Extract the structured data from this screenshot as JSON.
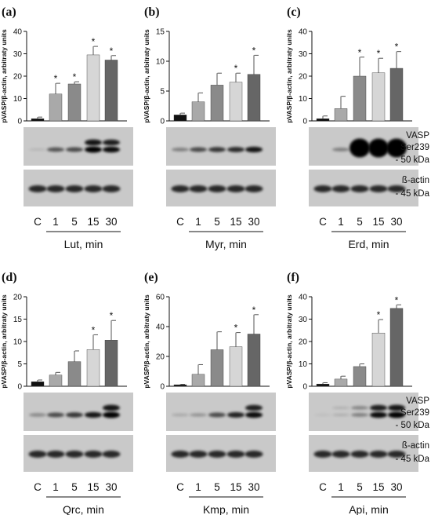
{
  "lane_labels": [
    "C",
    "1",
    "5",
    "15",
    "30"
  ],
  "bar_colors": [
    "#111111",
    "#a9a9a9",
    "#8a8a8a",
    "#d6d6d6",
    "#666666"
  ],
  "side_labels": {
    "vasp": "VASP",
    "ser": "Ser239",
    "kda50": "- 50 kDa",
    "actin": "ß-actin",
    "kda45": "- 45 kDa"
  },
  "chart_data": [
    {
      "type": "bar",
      "panel": "(a)",
      "xlabel": "Lut, min",
      "ylabel": "pVASP/β-actin, arbitraty units",
      "categories": [
        "C",
        "1",
        "5",
        "15",
        "30"
      ],
      "values": [
        1,
        12,
        16.5,
        29.5,
        27.2
      ],
      "errors": [
        0.7,
        4.8,
        1,
        3.8,
        2
      ],
      "significant": [
        false,
        true,
        true,
        true,
        true
      ],
      "ylim": [
        0,
        40
      ],
      "yticks": [
        0,
        10,
        20,
        30,
        40
      ],
      "vasp_bands": [
        0.08,
        0.55,
        0.6,
        0.95,
        0.9
      ],
      "vasp_doublet": [
        false,
        false,
        false,
        true,
        true
      ],
      "actin_bands": [
        0.8,
        0.8,
        0.8,
        0.8,
        0.8
      ]
    },
    {
      "type": "bar",
      "panel": "(b)",
      "xlabel": "Myr, min",
      "ylabel": "pVASP/β-actin, arbitraty units",
      "categories": [
        "C",
        "1",
        "5",
        "15",
        "30"
      ],
      "values": [
        1,
        3.2,
        6,
        6.5,
        7.8
      ],
      "errors": [
        0.3,
        1.5,
        2,
        1.5,
        3.2
      ],
      "significant": [
        false,
        false,
        false,
        true,
        true
      ],
      "ylim": [
        0,
        15
      ],
      "yticks": [
        0,
        5,
        10,
        15
      ],
      "vasp_bands": [
        0.35,
        0.6,
        0.7,
        0.75,
        0.85
      ],
      "vasp_doublet": [
        false,
        false,
        false,
        false,
        false
      ],
      "actin_bands": [
        0.8,
        0.8,
        0.8,
        0.8,
        0.8
      ]
    },
    {
      "type": "bar",
      "panel": "(c)",
      "xlabel": "Erd, min",
      "ylabel": "pVASP/β-actin, arbitraty units",
      "categories": [
        "C",
        "1",
        "5",
        "15",
        "30"
      ],
      "values": [
        1,
        5.5,
        20,
        21.5,
        23.5
      ],
      "errors": [
        1.2,
        5.5,
        8.5,
        6.5,
        7.5
      ],
      "significant": [
        false,
        false,
        true,
        true,
        true
      ],
      "ylim": [
        0,
        40
      ],
      "yticks": [
        0,
        10,
        20,
        30,
        40
      ],
      "vasp_bands": [
        0,
        0.35,
        1,
        1,
        1
      ],
      "vasp_doublet": [
        false,
        false,
        false,
        false,
        false
      ],
      "actin_bands": [
        0.8,
        0.8,
        0.8,
        0.8,
        0.8
      ]
    },
    {
      "type": "bar",
      "panel": "(d)",
      "xlabel": "Qrc, min",
      "ylabel": "pVASP/β-actin, arbitraty units",
      "categories": [
        "C",
        "1",
        "5",
        "15",
        "30"
      ],
      "values": [
        1,
        2.5,
        5.5,
        8.2,
        10.3
      ],
      "errors": [
        0.4,
        0.6,
        2.4,
        3.3,
        4.4
      ],
      "significant": [
        false,
        false,
        false,
        true,
        true
      ],
      "ylim": [
        0,
        20
      ],
      "yticks": [
        0,
        5,
        10,
        15,
        20
      ],
      "vasp_bands": [
        0.3,
        0.6,
        0.7,
        0.85,
        0.95
      ],
      "vasp_doublet": [
        false,
        false,
        false,
        false,
        true
      ],
      "actin_bands": [
        0.8,
        0.8,
        0.8,
        0.8,
        0.8
      ]
    },
    {
      "type": "bar",
      "panel": "(e)",
      "xlabel": "Kmp, min",
      "ylabel": "pVASP/β-actin, arbitraty units",
      "categories": [
        "C",
        "1",
        "5",
        "15",
        "30"
      ],
      "values": [
        1,
        8,
        24.5,
        26.5,
        35
      ],
      "errors": [
        0.3,
        6.5,
        12,
        9.5,
        13
      ],
      "significant": [
        false,
        false,
        false,
        true,
        true
      ],
      "ylim": [
        0,
        60
      ],
      "yticks": [
        0,
        20,
        40,
        60
      ],
      "vasp_bands": [
        0.15,
        0.25,
        0.6,
        0.8,
        0.9
      ],
      "vasp_doublet": [
        false,
        false,
        false,
        false,
        true
      ],
      "actin_bands": [
        0.8,
        0.8,
        0.8,
        0.8,
        0.8
      ]
    },
    {
      "type": "bar",
      "panel": "(f)",
      "xlabel": "Api, min",
      "ylabel": "pVASP/β-actin, arbitraty units",
      "categories": [
        "C",
        "1",
        "5",
        "15",
        "30"
      ],
      "values": [
        1,
        3.2,
        8.8,
        23.8,
        34.8
      ],
      "errors": [
        0.6,
        1.3,
        1.2,
        6,
        1.6
      ],
      "significant": [
        false,
        false,
        false,
        true,
        true
      ],
      "ylim": [
        0,
        40
      ],
      "yticks": [
        0,
        10,
        20,
        30,
        40
      ],
      "vasp_bands": [
        0.05,
        0.12,
        0.35,
        0.9,
        0.95
      ],
      "vasp_doublet": [
        false,
        true,
        true,
        true,
        true
      ],
      "actin_bands": [
        0.8,
        0.8,
        0.8,
        0.8,
        0.8
      ]
    }
  ]
}
